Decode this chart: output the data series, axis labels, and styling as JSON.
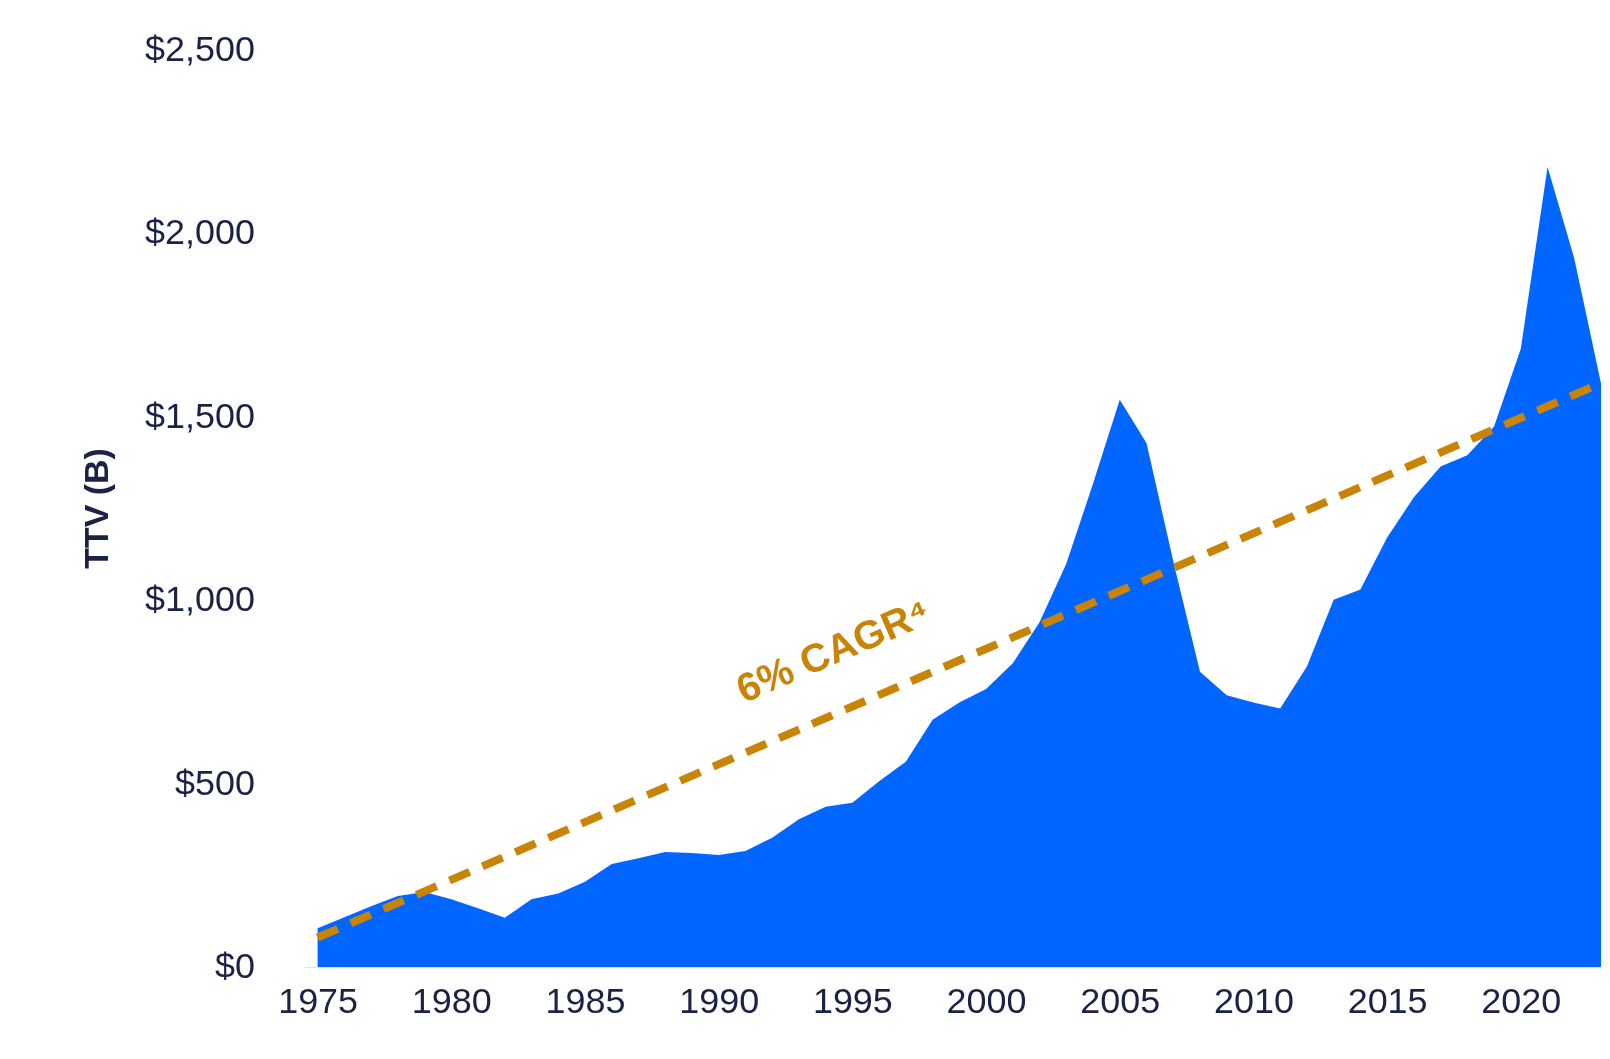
{
  "chart_data": {
    "type": "area",
    "ylabel": "TTV (B)",
    "x": [
      1975,
      1976,
      1977,
      1978,
      1979,
      1980,
      1981,
      1982,
      1983,
      1984,
      1985,
      1986,
      1987,
      1988,
      1989,
      1990,
      1991,
      1992,
      1993,
      1994,
      1995,
      1996,
      1997,
      1998,
      1999,
      2000,
      2001,
      2002,
      2003,
      2004,
      2005,
      2006,
      2007,
      2008,
      2009,
      2010,
      2011,
      2012,
      2013,
      2014,
      2015,
      2016,
      2017,
      2018,
      2019,
      2020,
      2021,
      2022,
      2023
    ],
    "series": [
      {
        "color": "#0066ff",
        "values": [
          105,
          135,
          165,
          193,
          204,
          184,
          160,
          134,
          184,
          200,
          232,
          280,
          296,
          313,
          310,
          305,
          316,
          352,
          402,
          436,
          447,
          506,
          559,
          673,
          720,
          757,
          827,
          939,
          1098,
          1316,
          1545,
          1427,
          1106,
          804,
          740,
          720,
          704,
          818,
          1000,
          1028,
          1170,
          1279,
          1363,
          1394,
          1472,
          1684,
          2179,
          1930,
          1589
        ]
      },
      {
        "type": "line",
        "x": [
          1975,
          2023
        ],
        "values": [
          80,
          1590
        ],
        "color": "#c98306",
        "line_style": "dashed"
      }
    ],
    "annotations": [
      "6% CAGR⁴"
    ],
    "xlim": [
      1974.5,
      2023
    ],
    "xticks": [
      1975,
      1980,
      1985,
      1990,
      1995,
      2000,
      2005,
      2010,
      2015,
      2020
    ],
    "ylim": [
      0,
      2500
    ],
    "yticks": [
      {
        "value": 0,
        "label": "$0"
      },
      {
        "value": 500,
        "label": "$500"
      },
      {
        "value": 1000,
        "label": "$1,000"
      },
      {
        "value": 1500,
        "label": "$1,500"
      },
      {
        "value": 2000,
        "label": "$2,000"
      },
      {
        "value": 2500,
        "label": "$2,500"
      }
    ],
    "grid": false
  }
}
